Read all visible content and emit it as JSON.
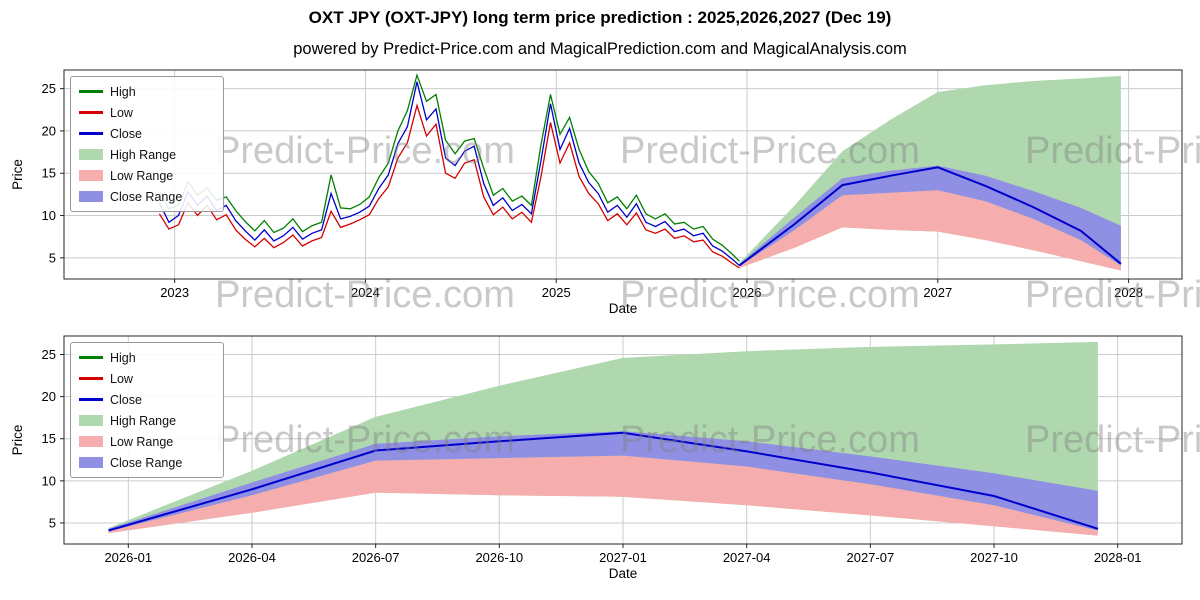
{
  "header": {
    "title": "OXT JPY (OXT-JPY) long term price prediction : 2025,2026,2027 (Dec 19)",
    "subtitle": "powered by Predict-Price.com and MagicalPrediction.com and MagicalAnalysis.com"
  },
  "watermark": "Predict-Price.com",
  "colors": {
    "high": "#008000",
    "low": "#d40000",
    "close": "#0000cc",
    "high_range": "#afd8af",
    "low_range": "#f6adad",
    "close_range": "#8f8fe4",
    "grid": "#cccccc",
    "spine": "#262626",
    "watermark": "#808080"
  },
  "legend": [
    {
      "key": "high",
      "label": "High",
      "swatch": "line"
    },
    {
      "key": "low",
      "label": "Low",
      "swatch": "line"
    },
    {
      "key": "close",
      "label": "Close",
      "swatch": "line"
    },
    {
      "key": "high_range",
      "label": "High Range",
      "swatch": "patch"
    },
    {
      "key": "low_range",
      "label": "Low Range",
      "swatch": "patch"
    },
    {
      "key": "close_range",
      "label": "Close Range",
      "swatch": "patch"
    }
  ],
  "chart_data": [
    {
      "type": "line",
      "name": "historical-and-forecast",
      "title": "",
      "xlabel": "Date",
      "ylabel": "Price",
      "grid": true,
      "legend_position": "upper left",
      "xlim": [
        2022.42,
        2028.28
      ],
      "ylim": [
        2.5,
        27.2
      ],
      "xticks": [
        {
          "v": 2023,
          "label": "2023"
        },
        {
          "v": 2024,
          "label": "2024"
        },
        {
          "v": 2025,
          "label": "2025"
        },
        {
          "v": 2026,
          "label": "2026"
        },
        {
          "v": 2027,
          "label": "2027"
        },
        {
          "v": 2028,
          "label": "2028"
        }
      ],
      "yticks": [
        {
          "v": 5,
          "label": "5"
        },
        {
          "v": 10,
          "label": "10"
        },
        {
          "v": 15,
          "label": "15"
        },
        {
          "v": 20,
          "label": "20"
        },
        {
          "v": 25,
          "label": "25"
        }
      ],
      "series": {
        "historical": {
          "x": [
            2022.92,
            2022.97,
            2023.02,
            2023.07,
            2023.12,
            2023.17,
            2023.22,
            2023.27,
            2023.32,
            2023.37,
            2023.42,
            2023.47,
            2023.52,
            2023.57,
            2023.62,
            2023.67,
            2023.72,
            2023.77,
            2023.82,
            2023.87,
            2023.92,
            2023.97,
            2024.02,
            2024.07,
            2024.12,
            2024.17,
            2024.22,
            2024.27,
            2024.32,
            2024.37,
            2024.42,
            2024.47,
            2024.52,
            2024.57,
            2024.62,
            2024.67,
            2024.72,
            2024.77,
            2024.82,
            2024.87,
            2024.92,
            2024.97,
            2025.02,
            2025.07,
            2025.12,
            2025.17,
            2025.22,
            2025.27,
            2025.32,
            2025.37,
            2025.42,
            2025.47,
            2025.52,
            2025.57,
            2025.62,
            2025.67,
            2025.72,
            2025.77,
            2025.82,
            2025.87,
            2025.92,
            2025.96
          ],
          "high": [
            12.9,
            10.8,
            11.2,
            14.0,
            12.4,
            13.3,
            11.8,
            12.2,
            10.6,
            9.3,
            8.2,
            9.4,
            8.0,
            8.5,
            9.6,
            8.1,
            8.8,
            9.2,
            14.8,
            10.9,
            10.8,
            11.3,
            12.2,
            14.5,
            16.2,
            20.0,
            22.4,
            26.6,
            23.5,
            24.3,
            18.9,
            17.3,
            18.8,
            19.1,
            15.6,
            12.4,
            13.2,
            11.7,
            12.3,
            11.2,
            18.4,
            24.3,
            19.6,
            21.6,
            17.8,
            15.2,
            13.8,
            11.5,
            12.2,
            10.8,
            12.4,
            10.2,
            9.6,
            10.2,
            9.0,
            9.2,
            8.4,
            8.7,
            7.2,
            6.5,
            5.5,
            4.6
          ],
          "low": [
            10.2,
            8.4,
            8.9,
            11.5,
            10.0,
            11.2,
            9.5,
            10.1,
            8.3,
            7.2,
            6.3,
            7.3,
            6.2,
            6.8,
            7.7,
            6.4,
            7.0,
            7.4,
            10.5,
            8.6,
            9.0,
            9.5,
            10.1,
            12.0,
            13.4,
            16.8,
            18.6,
            23.0,
            19.4,
            20.8,
            15.0,
            14.4,
            16.2,
            16.6,
            12.2,
            10.1,
            11.0,
            9.6,
            10.4,
            9.2,
            14.6,
            21.0,
            16.2,
            18.6,
            14.6,
            12.6,
            11.4,
            9.4,
            10.2,
            8.9,
            10.3,
            8.3,
            7.9,
            8.4,
            7.3,
            7.6,
            6.9,
            7.1,
            5.7,
            5.2,
            4.4,
            3.8
          ],
          "close": [
            11.5,
            9.2,
            10.0,
            12.8,
            11.2,
            12.3,
            10.6,
            11.2,
            9.4,
            8.2,
            7.1,
            8.3,
            7.0,
            7.6,
            8.6,
            7.2,
            7.9,
            8.3,
            12.6,
            9.6,
            9.9,
            10.4,
            11.1,
            13.2,
            14.8,
            18.5,
            20.5,
            25.8,
            21.3,
            22.6,
            16.8,
            15.9,
            17.6,
            18.2,
            13.8,
            11.2,
            12.1,
            10.6,
            11.3,
            10.2,
            16.5,
            23.2,
            17.8,
            20.3,
            16.2,
            13.9,
            12.6,
            10.4,
            11.2,
            9.8,
            11.4,
            9.2,
            8.7,
            9.3,
            8.1,
            8.4,
            7.6,
            7.9,
            6.4,
            5.8,
            4.9,
            4.1
          ]
        },
        "forecast": {
          "x": [
            2025.96,
            2026.25,
            2026.5,
            2026.75,
            2027.0,
            2027.25,
            2027.5,
            2027.75,
            2027.96
          ],
          "high_upper": [
            4.4,
            11.2,
            17.6,
            21.3,
            24.6,
            25.4,
            25.9,
            26.2,
            26.5
          ],
          "close_upper": [
            4.3,
            9.8,
            14.4,
            15.3,
            15.9,
            14.7,
            12.9,
            10.9,
            8.8
          ],
          "close": [
            4.1,
            9.0,
            13.6,
            14.7,
            15.7,
            13.5,
            11.0,
            8.2,
            4.3
          ],
          "close_lower": [
            4.0,
            8.3,
            12.4,
            12.7,
            13.0,
            11.7,
            9.6,
            7.1,
            4.1
          ],
          "low_lower": [
            3.8,
            6.2,
            8.6,
            8.3,
            8.1,
            7.1,
            5.9,
            4.6,
            3.5
          ]
        }
      }
    },
    {
      "type": "area",
      "name": "forecast-detail",
      "title": "",
      "xlabel": "Date",
      "ylabel": "Price",
      "grid": true,
      "legend_position": "upper left",
      "xlim": [
        2025.87,
        2028.13
      ],
      "ylim": [
        2.5,
        27.2
      ],
      "xticks": [
        {
          "v": 2026.0,
          "label": "2026-01"
        },
        {
          "v": 2026.25,
          "label": "2026-04"
        },
        {
          "v": 2026.5,
          "label": "2026-07"
        },
        {
          "v": 2026.75,
          "label": "2026-10"
        },
        {
          "v": 2027.0,
          "label": "2027-01"
        },
        {
          "v": 2027.25,
          "label": "2027-04"
        },
        {
          "v": 2027.5,
          "label": "2027-07"
        },
        {
          "v": 2027.75,
          "label": "2027-10"
        },
        {
          "v": 2028.0,
          "label": "2028-01"
        }
      ],
      "yticks": [
        {
          "v": 5,
          "label": "5"
        },
        {
          "v": 10,
          "label": "10"
        },
        {
          "v": 15,
          "label": "15"
        },
        {
          "v": 20,
          "label": "20"
        },
        {
          "v": 25,
          "label": "25"
        }
      ],
      "series": {
        "forecast": {
          "x": [
            2025.96,
            2026.25,
            2026.5,
            2026.75,
            2027.0,
            2027.25,
            2027.5,
            2027.75,
            2027.96
          ],
          "high_upper": [
            4.4,
            11.2,
            17.6,
            21.3,
            24.6,
            25.4,
            25.9,
            26.2,
            26.5
          ],
          "close_upper": [
            4.3,
            9.8,
            14.4,
            15.3,
            15.9,
            14.7,
            12.9,
            10.9,
            8.8
          ],
          "close": [
            4.1,
            9.0,
            13.6,
            14.7,
            15.7,
            13.5,
            11.0,
            8.2,
            4.3
          ],
          "close_lower": [
            4.0,
            8.3,
            12.4,
            12.7,
            13.0,
            11.7,
            9.6,
            7.1,
            4.1
          ],
          "low_lower": [
            3.8,
            6.2,
            8.6,
            8.3,
            8.1,
            7.1,
            5.9,
            4.6,
            3.5
          ]
        }
      }
    }
  ]
}
